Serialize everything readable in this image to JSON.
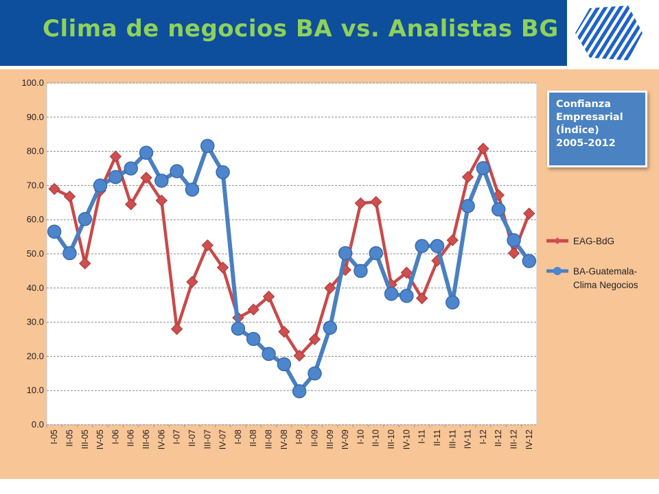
{
  "header": {
    "title": "Clima de negocios BA vs. Analistas BG"
  },
  "logo": {
    "icon": "striped-hexagon-logo",
    "color": "#1f63c8"
  },
  "info_box": {
    "lines": [
      "Confianza",
      "Empresarial",
      "(Índice)",
      "2005-2012"
    ]
  },
  "colors": {
    "eag": "#c84a4a",
    "eag_marker": "#d04e4e",
    "ba": "#4a80c0",
    "ba_marker": "#4d86cc",
    "panel": "#f8c597",
    "header": "#0d4f9c",
    "title": "#8fd15a"
  },
  "chart_data": {
    "type": "line",
    "title": "",
    "ylim": [
      0,
      100
    ],
    "ytick_labels": [
      "0.0",
      "10.0",
      "20.0",
      "30.0",
      "40.0",
      "50.0",
      "60.0",
      "70.0",
      "80.0",
      "90.0",
      "100.0"
    ],
    "grid": "horizontal-dashed",
    "legend_position": "right",
    "categories": [
      "I-05",
      "II-05",
      "III-05",
      "IV-05",
      "I-06",
      "II-06",
      "III-06",
      "IV-06",
      "I-07",
      "II-07",
      "III-07",
      "IV-07",
      "I-08",
      "II-08",
      "III-08",
      "IV-08",
      "I-09",
      "II-09",
      "III-09",
      "IV-09",
      "I-10",
      "II-10",
      "III-10",
      "IV-10",
      "I-11",
      "II-11",
      "III-11",
      "IV-11",
      "I-12",
      "II-12",
      "III-12",
      "IV-12"
    ],
    "series": [
      {
        "name": "EAG-BdG",
        "marker": "diamond",
        "values": [
          69,
          66.8,
          47.2,
          68.5,
          78.5,
          64.5,
          72.3,
          65.6,
          28,
          41.8,
          52.5,
          46,
          31.3,
          33.7,
          37.5,
          27.2,
          20.2,
          25,
          40,
          45.3,
          64.8,
          65.2,
          41,
          44.5,
          37,
          48,
          54,
          72.5,
          80.8,
          67.2,
          50.2,
          61.8
        ]
      },
      {
        "name": "BA-Guatemala-Clima Negocios",
        "marker": "circle",
        "values": [
          56.5,
          50.2,
          60.2,
          70,
          72.5,
          75,
          79.6,
          71.4,
          74.2,
          68.8,
          81.6,
          73.9,
          28.1,
          25.1,
          20.7,
          17.7,
          9.8,
          15,
          28.4,
          50.2,
          45,
          50.2,
          38.3,
          37.7,
          52.3,
          52.3,
          35.8,
          64,
          75.1,
          63,
          54,
          47.9
        ]
      }
    ]
  }
}
